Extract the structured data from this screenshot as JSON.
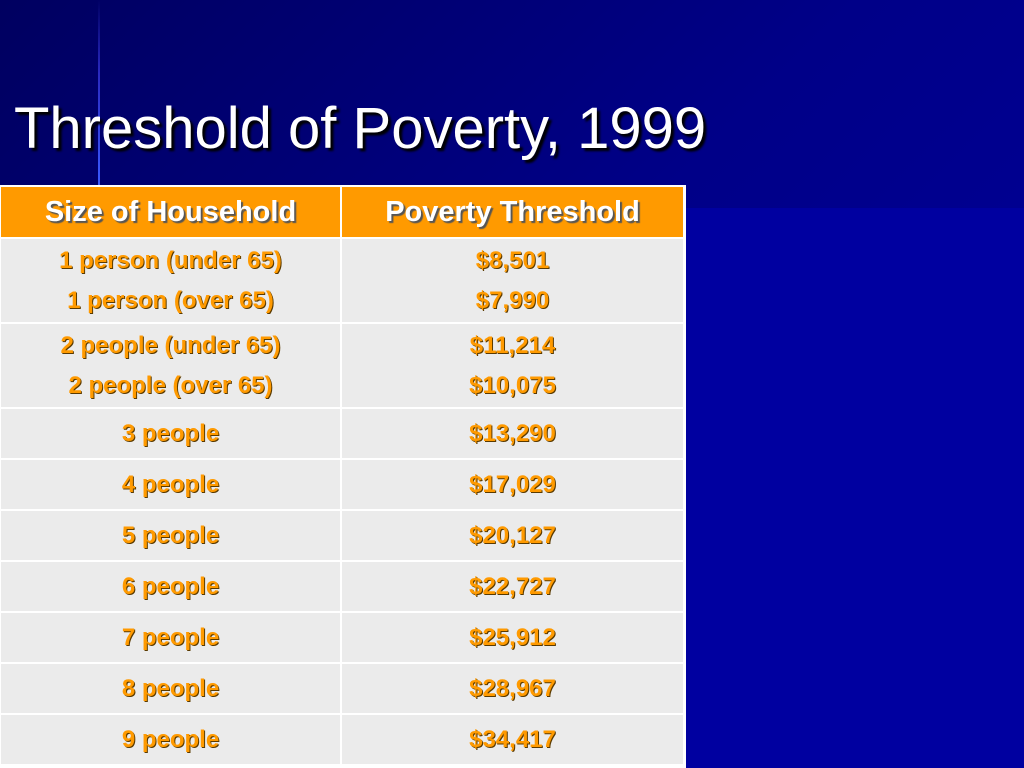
{
  "slide": {
    "title": "Threshold of Poverty, 1999"
  },
  "table": {
    "headers": [
      "Size of Household",
      "Poverty Threshold"
    ],
    "rows": [
      {
        "size": [
          "1 person (under 65)",
          "1 person (over 65)"
        ],
        "threshold": [
          "$8,501",
          "$7,990"
        ]
      },
      {
        "size": [
          "2 people (under 65)",
          "2 people (over 65)"
        ],
        "threshold": [
          "$11,214",
          "$10,075"
        ]
      },
      {
        "size": [
          "3 people"
        ],
        "threshold": [
          "$13,290"
        ]
      },
      {
        "size": [
          "4 people"
        ],
        "threshold": [
          "$17,029"
        ]
      },
      {
        "size": [
          "5 people"
        ],
        "threshold": [
          "$20,127"
        ]
      },
      {
        "size": [
          "6 people"
        ],
        "threshold": [
          "$22,727"
        ]
      },
      {
        "size": [
          "7 people"
        ],
        "threshold": [
          "$25,912"
        ]
      },
      {
        "size": [
          "8 people"
        ],
        "threshold": [
          "$28,967"
        ]
      },
      {
        "size": [
          "9 people"
        ],
        "threshold": [
          "$34,417"
        ]
      }
    ]
  },
  "colors": {
    "background": "#0000a0",
    "header_fill": "#ff9a00",
    "cell_fill": "#ebebeb",
    "cell_text": "#ff9a00"
  }
}
